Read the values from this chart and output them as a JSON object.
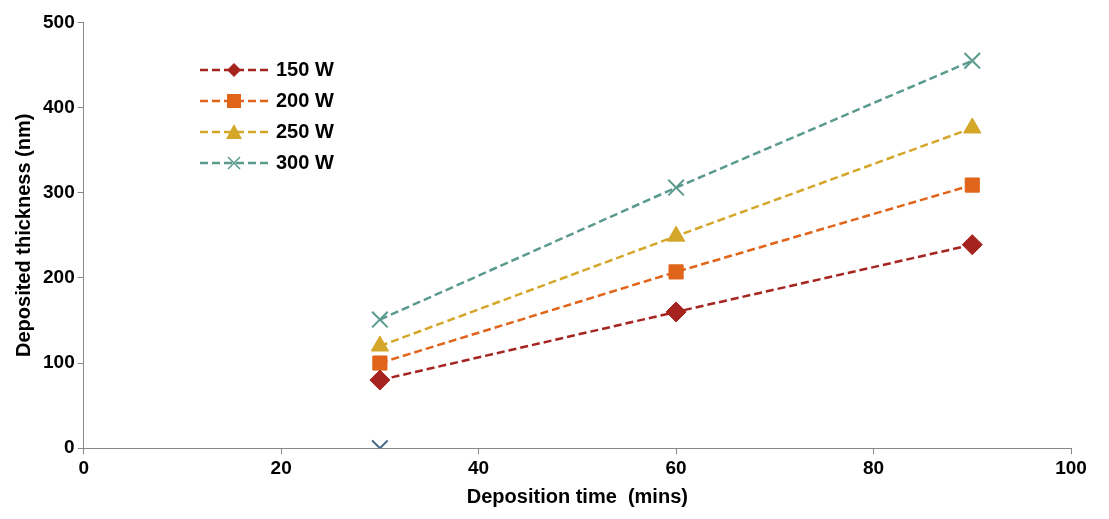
{
  "chart_data": {
    "type": "line",
    "xlabel": "Deposition time  (mins)",
    "ylabel": "Deposited thickness (nm)",
    "x": [
      30,
      60,
      90
    ],
    "series": [
      {
        "name": "150 W",
        "color": "#a5241f",
        "values": [
          80,
          160,
          239
        ],
        "marker": "diamond"
      },
      {
        "name": "200 W",
        "color": "#e0641a",
        "values": [
          100,
          207,
          309
        ],
        "marker": "square"
      },
      {
        "name": "250 W",
        "color": "#d4a62a",
        "values": [
          120,
          249,
          376
        ],
        "marker": "triangle"
      },
      {
        "name": "300 W",
        "color": "#5b9a8f",
        "values": [
          151,
          306,
          455
        ],
        "marker": "cross"
      },
      {
        "color": "#4a6a8a",
        "x": [
          30
        ],
        "values": [
          0
        ],
        "marker": "cross"
      }
    ],
    "xlim": [
      0,
      100
    ],
    "xticks": [
      0,
      20,
      40,
      60,
      80,
      100
    ],
    "ylim": [
      0,
      500
    ],
    "yticks": [
      0,
      100,
      200,
      300,
      400,
      500
    ],
    "grid": false,
    "legend": "top left",
    "line_style": "dashed"
  }
}
